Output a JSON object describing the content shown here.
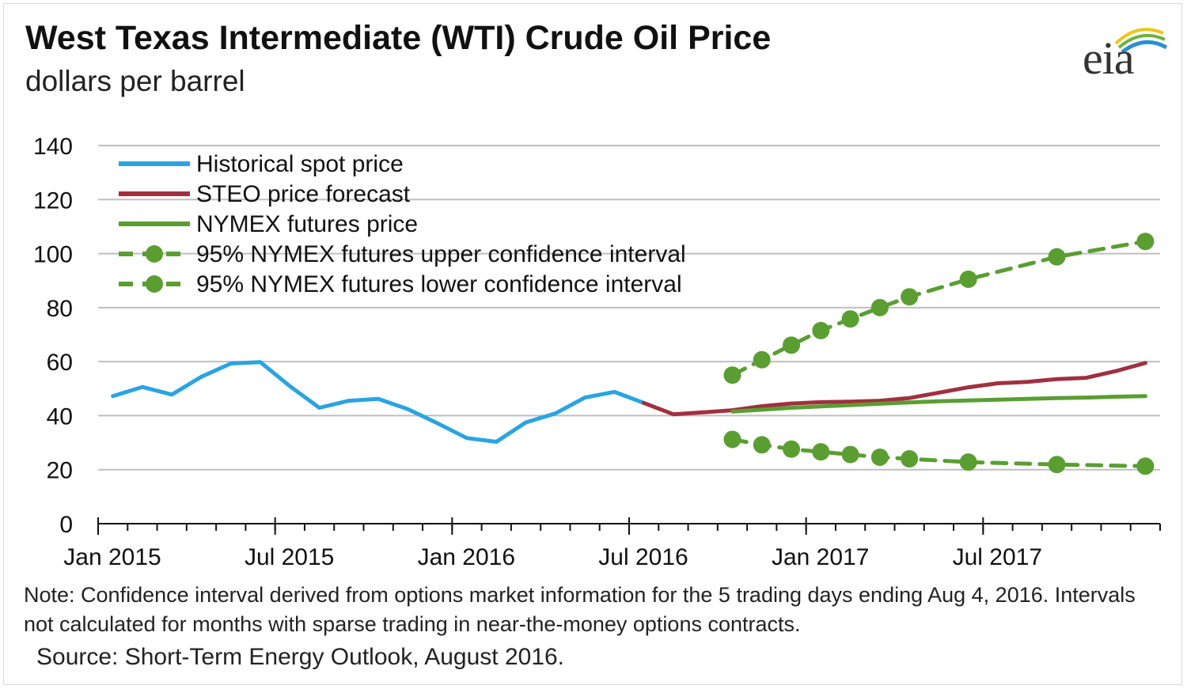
{
  "title": "West Texas Intermediate (WTI) Crude Oil Price",
  "subtitle": "dollars per barrel",
  "logo_text": "eia",
  "note": "Note: Confidence interval derived from options market information for the 5 trading days ending Aug 4, 2016. Intervals not calculated for months with sparse trading in near-the-money options contracts.",
  "source": "Source: Short-Term Energy Outlook, August 2016.",
  "colors": {
    "historical": "#2aa4e0",
    "steo": "#a03040",
    "nymex": "#5a9e32",
    "grid": "#bfbfbf",
    "logo_arc_blue": "#2a8fd0",
    "logo_arc_green": "#6cb33f",
    "logo_arc_yellow": "#f2c316"
  },
  "chart_data": {
    "type": "line",
    "title": "West Texas Intermediate (WTI) Crude Oil Price",
    "ylabel": "dollars per barrel",
    "ylim": [
      0,
      140
    ],
    "y_ticks": [
      0,
      20,
      40,
      60,
      80,
      100,
      120,
      140
    ],
    "x_ticks": [
      {
        "label": "Jan 2015",
        "month": "2015-01"
      },
      {
        "label": "Jul 2015",
        "month": "2015-07"
      },
      {
        "label": "Jan 2016",
        "month": "2016-01"
      },
      {
        "label": "Jul 2016",
        "month": "2016-07"
      },
      {
        "label": "Jan 2017",
        "month": "2017-01"
      },
      {
        "label": "Jul 2017",
        "month": "2017-07"
      }
    ],
    "x_range": [
      "2015-01",
      "2017-12"
    ],
    "grid": true,
    "legend_position": "top-left",
    "series": [
      {
        "name": "Historical spot price",
        "style": "solid",
        "x": [
          "2015-01",
          "2015-02",
          "2015-03",
          "2015-04",
          "2015-05",
          "2015-06",
          "2015-07",
          "2015-08",
          "2015-09",
          "2015-10",
          "2015-11",
          "2015-12",
          "2016-01",
          "2016-02",
          "2016-03",
          "2016-04",
          "2016-05",
          "2016-06",
          "2016-07"
        ],
        "values": [
          47.2,
          50.6,
          47.8,
          54.4,
          59.3,
          59.8,
          50.9,
          42.9,
          45.5,
          46.2,
          42.4,
          37.2,
          31.7,
          30.3,
          37.5,
          40.8,
          46.7,
          48.8,
          44.7
        ]
      },
      {
        "name": "STEO price forecast",
        "style": "solid",
        "x": [
          "2016-07",
          "2016-08",
          "2016-09",
          "2016-10",
          "2016-11",
          "2016-12",
          "2017-01",
          "2017-02",
          "2017-03",
          "2017-04",
          "2017-05",
          "2017-06",
          "2017-07",
          "2017-08",
          "2017-09",
          "2017-10",
          "2017-11",
          "2017-12"
        ],
        "values": [
          44.7,
          40.5,
          41.2,
          42.0,
          43.5,
          44.5,
          45.0,
          45.2,
          45.5,
          46.5,
          48.5,
          50.5,
          52.0,
          52.5,
          53.5,
          54.0,
          56.5,
          59.5
        ]
      },
      {
        "name": "NYMEX futures price",
        "style": "solid",
        "x": [
          "2016-10",
          "2016-11",
          "2016-12",
          "2017-01",
          "2017-02",
          "2017-03",
          "2017-04",
          "2017-05",
          "2017-06",
          "2017-07",
          "2017-08",
          "2017-09",
          "2017-10",
          "2017-11",
          "2017-12"
        ],
        "values": [
          41.5,
          42.2,
          42.9,
          43.4,
          43.9,
          44.4,
          44.9,
          45.3,
          45.6,
          45.9,
          46.2,
          46.5,
          46.7,
          47.0,
          47.2
        ]
      },
      {
        "name": "95% NYMEX futures upper confidence interval",
        "style": "dashed-markers",
        "x": [
          "2016-10",
          "2016-11",
          "2016-12",
          "2017-01",
          "2017-02",
          "2017-03",
          "2017-04",
          "2017-06",
          "2017-09",
          "2017-12"
        ],
        "values": [
          55.0,
          60.7,
          66.1,
          71.5,
          75.8,
          80.0,
          84.0,
          90.5,
          98.8,
          104.5
        ]
      },
      {
        "name": "95% NYMEX futures lower confidence interval",
        "style": "dashed-markers",
        "x": [
          "2016-10",
          "2016-11",
          "2016-12",
          "2017-01",
          "2017-02",
          "2017-03",
          "2017-04",
          "2017-06",
          "2017-09",
          "2017-12"
        ],
        "values": [
          31.2,
          29.2,
          27.6,
          26.6,
          25.6,
          24.6,
          24.0,
          22.8,
          21.9,
          21.3
        ]
      }
    ]
  }
}
